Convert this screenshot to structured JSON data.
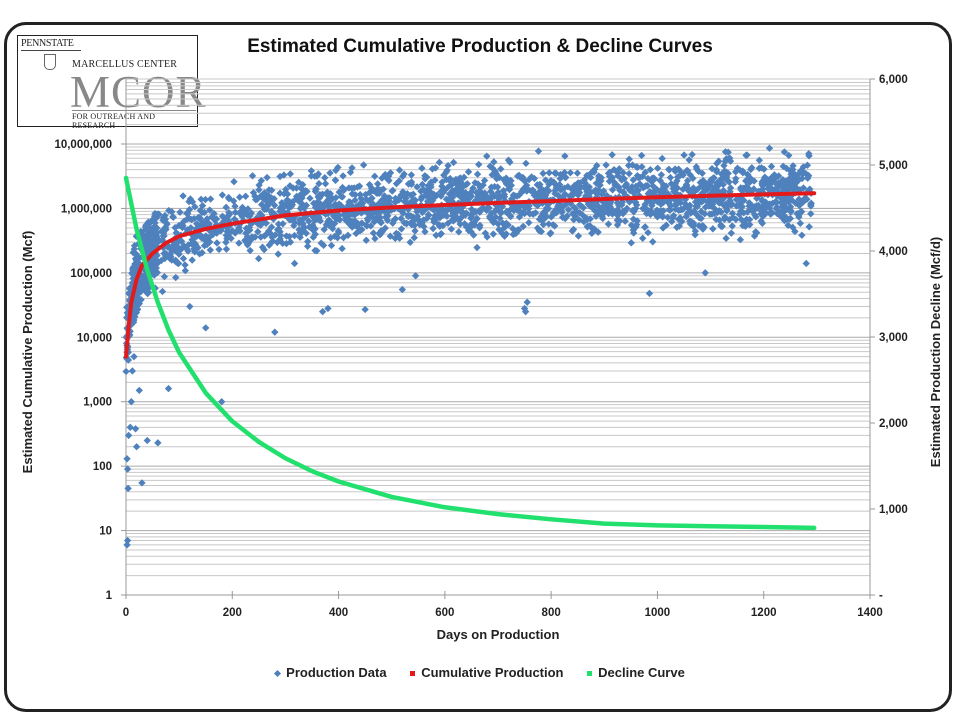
{
  "logo": {
    "university": "PENNSTATE",
    "center": "MARCELLUS CENTER",
    "acronym": "MCOR",
    "tagline": "FOR OUTREACH AND RESEARCH"
  },
  "chart_data": {
    "type": "scatter",
    "title": "Estimated Cumulative Production & Decline Curves",
    "xlabel": "Days on Production",
    "ylabel": "Estimated Cumulative Production (Mcf)",
    "y2label": "Estimated Production Decline (Mcf/d)",
    "xlim": [
      0,
      1400
    ],
    "xticks": [
      "0",
      "200",
      "400",
      "600",
      "800",
      "1000",
      "1200",
      "1400"
    ],
    "ylim_log": [
      1,
      10000000
    ],
    "yticks": [
      "1",
      "10",
      "100",
      "1,000",
      "10,000",
      "100,000",
      "1,000,000",
      "10,000,000"
    ],
    "y2lim": [
      0,
      6000
    ],
    "y2ticks": [
      "-",
      "1,000",
      "2,000",
      "3,000",
      "4,000",
      "5,000",
      "6,000"
    ],
    "grid": true,
    "legend_position": "bottom",
    "colors": {
      "production": "#4f81bd",
      "cumulative": "#e31a1c",
      "decline": "#22e06e"
    },
    "series": [
      {
        "name": "Production Data",
        "kind": "scatter",
        "note": "~2500 well points, mostly 100,000–5,000,000 Mcf over 0–1290 days; sparse low outliers near day 0 down to ~6 Mcf",
        "x": [
          2,
          3,
          4,
          3,
          2,
          5,
          8,
          10,
          12,
          15,
          20,
          25,
          30,
          18,
          40,
          60,
          80,
          120,
          150,
          180,
          280,
          370,
          380,
          450,
          520,
          545,
          750,
          752,
          755,
          985,
          1090,
          1280
        ],
        "y": [
          6,
          7,
          45,
          90,
          130,
          300,
          400,
          1000,
          3000,
          5000,
          200,
          1500,
          55,
          380,
          250,
          230,
          1600,
          30000,
          14000,
          1000,
          12000,
          25000,
          28000,
          27000,
          55000,
          90000,
          28000,
          25000,
          35000,
          48000,
          100000,
          140000
        ]
      },
      {
        "name": "Cumulative Production",
        "kind": "line",
        "x": [
          0,
          5,
          10,
          20,
          30,
          50,
          75,
          100,
          150,
          200,
          300,
          400,
          500,
          600,
          700,
          800,
          900,
          1000,
          1100,
          1200,
          1295
        ],
        "y": [
          5000,
          15000,
          35000,
          80000,
          130000,
          200000,
          290000,
          370000,
          480000,
          580000,
          780000,
          930000,
          1040000,
          1130000,
          1220000,
          1300000,
          1400000,
          1490000,
          1570000,
          1650000,
          1720000
        ]
      },
      {
        "name": "Decline Curve",
        "kind": "line",
        "axis": "y2",
        "x": [
          0,
          20,
          40,
          60,
          80,
          100,
          150,
          200,
          250,
          300,
          350,
          400,
          500,
          600,
          700,
          800,
          900,
          1000,
          1100,
          1200,
          1295
        ],
        "y": [
          4850,
          4250,
          3780,
          3400,
          3080,
          2820,
          2350,
          2020,
          1780,
          1590,
          1440,
          1320,
          1140,
          1020,
          940,
          880,
          830,
          810,
          800,
          790,
          780
        ]
      }
    ]
  }
}
